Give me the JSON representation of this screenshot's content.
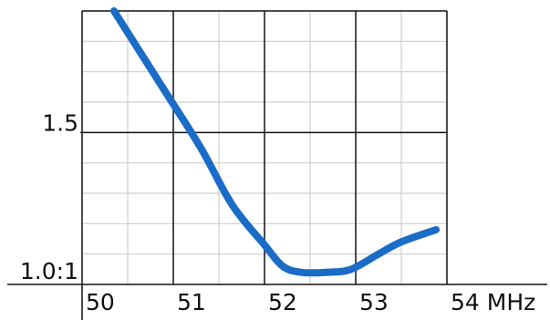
{
  "chart_data": {
    "type": "line",
    "title": "",
    "xlabel": "",
    "ylabel": "",
    "x_unit": "MHz",
    "xlim": [
      50,
      54
    ],
    "ylim": [
      1.0,
      1.9
    ],
    "x_ticks": [
      {
        "value": 50,
        "label": "50"
      },
      {
        "value": 51,
        "label": "51"
      },
      {
        "value": 52,
        "label": "52"
      },
      {
        "value": 53,
        "label": "53"
      },
      {
        "value": 54,
        "label": "54 MHz"
      }
    ],
    "y_ticks": [
      {
        "value": 1.0,
        "label": "1.0:1"
      },
      {
        "value": 1.5,
        "label": "1.5"
      }
    ],
    "x_grid_major": [
      51,
      52,
      53
    ],
    "x_grid_minor": [
      50.5,
      51.5,
      52.5,
      53.5
    ],
    "y_grid_minor": [
      1.1,
      1.2,
      1.3,
      1.4,
      1.6,
      1.7,
      1.8
    ],
    "grid": true,
    "series": [
      {
        "color": "#1a6cc7",
        "x": [
          50.35,
          50.9,
          51.3,
          51.65,
          52.0,
          52.2,
          52.4,
          52.7,
          52.95,
          53.25,
          53.5,
          53.88
        ],
        "y": [
          1.9,
          1.64,
          1.45,
          1.26,
          1.13,
          1.06,
          1.04,
          1.04,
          1.05,
          1.1,
          1.14,
          1.18
        ]
      }
    ]
  }
}
